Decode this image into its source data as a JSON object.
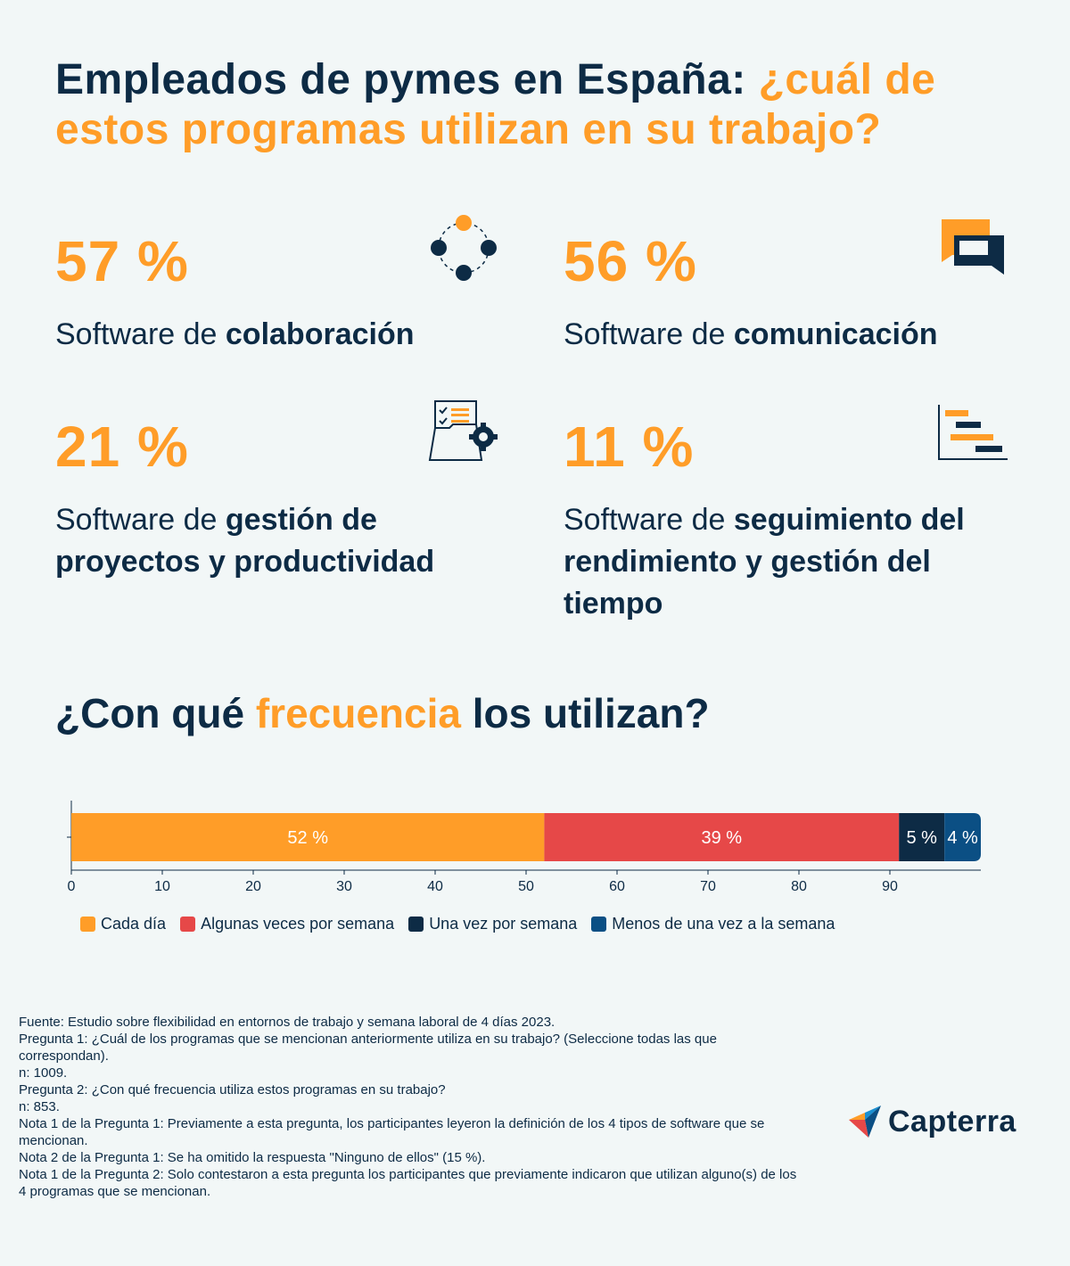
{
  "title": {
    "part1": "Empleados de pymes en España: ",
    "part2": "¿cuál de estos programas utilizan en su trabajo?"
  },
  "stats": [
    {
      "pct": "57 %",
      "prefix": "Software de ",
      "bold": "colaboración",
      "icon": "collaboration-icon"
    },
    {
      "pct": "56 %",
      "prefix": "Software de ",
      "bold": "comunicación",
      "icon": "chat-bubbles-icon"
    },
    {
      "pct": "21 %",
      "prefix": "Software de ",
      "bold": "gestión de proyectos y productividad",
      "icon": "checklist-gear-icon"
    },
    {
      "pct": "11 %",
      "prefix": "Software de ",
      "bold": "seguimiento del rendimiento y gestión del tiempo",
      "icon": "gantt-chart-icon"
    }
  ],
  "frequency_title": {
    "part1": "¿Con qué ",
    "part2": "frecuencia",
    "part3": " los utilizan?"
  },
  "chart_data": {
    "type": "bar",
    "orientation": "horizontal-stacked",
    "title": "¿Con qué frecuencia los utilizan?",
    "xlim": [
      0,
      100
    ],
    "xticks": [
      0,
      10,
      20,
      30,
      40,
      50,
      60,
      70,
      80,
      90
    ],
    "series": [
      {
        "name": "Cada día",
        "value": 52,
        "label": "52 %",
        "color": "#ff9d28"
      },
      {
        "name": "Algunas veces por semana",
        "value": 39,
        "label": "39 %",
        "color": "#e64848"
      },
      {
        "name": "Una vez por semana",
        "value": 5,
        "label": "5 %",
        "color": "#0d2b45"
      },
      {
        "name": "Menos de una vez a la semana",
        "value": 4,
        "label": "4 %",
        "color": "#0b4f84"
      }
    ],
    "legend_position": "bottom-left"
  },
  "footer": [
    "Fuente: Estudio sobre flexibilidad en entornos de trabajo y semana laboral de 4 días 2023.",
    "Pregunta 1: ¿Cuál de los programas que se mencionan anteriormente utiliza en su trabajo? (Seleccione todas las que correspondan).",
    "n: 1009.",
    "Pregunta 2: ¿Con qué frecuencia utiliza estos programas en su trabajo?",
    "n: 853.",
    "Nota 1 de la Pregunta 1: Previamente a esta pregunta, los participantes leyeron la definición de los 4 tipos de software que se mencionan.",
    "Nota 2 de la Pregunta 1: Se ha omitido la respuesta \"Ninguno de ellos\" (15 %).",
    "Nota 1 de la Pregunta 2: Solo contestaron a esta pregunta los participantes que previamente indicaron que utilizan alguno(s) de los 4 programas que se mencionan."
  ],
  "logo": {
    "text": "Capterra",
    "icon": "capterra-arrow-icon"
  },
  "colors": {
    "navy": "#0d2b45",
    "orange": "#ff9d28",
    "red": "#e64848",
    "blue": "#0b4f84",
    "background": "#f2f7f7"
  }
}
